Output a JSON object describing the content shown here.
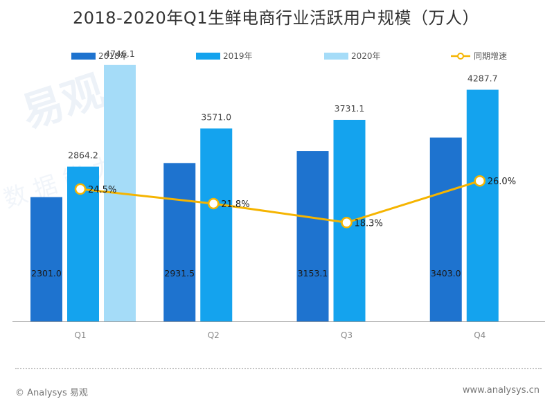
{
  "colors": {
    "s2018": "#1e73cf",
    "s2019": "#14a3ee",
    "s2020": "#a5dcf8",
    "line": "#f5b400",
    "axis": "#999999",
    "text": "#333333",
    "watermark": "#dfe8f3"
  },
  "watermark": {
    "brand": "易观",
    "tagline": "数 据 能 力"
  },
  "footer": {
    "copyright": "© Analysys 易观",
    "website": "www.analysys.cn"
  },
  "chart_data": {
    "type": "bar",
    "title": "2018-2020年Q1生鲜电商行业活跃用户规模（万人）",
    "categories": [
      "Q1",
      "Q2",
      "Q3",
      "Q4"
    ],
    "series": [
      {
        "name": "2018年",
        "values": [
          2301.0,
          2931.5,
          3153.1,
          3403.0
        ],
        "value_labels": [
          "2301.0",
          "2931.5",
          "3153.1",
          "3403.0"
        ],
        "color": "#1e73cf"
      },
      {
        "name": "2019年",
        "values": [
          2864.2,
          3571.0,
          3731.1,
          4287.7
        ],
        "value_labels": [
          "2864.2",
          "3571.0",
          "3731.1",
          "4287.7"
        ],
        "color": "#14a3ee"
      },
      {
        "name": "2020年",
        "values": [
          4746.1,
          null,
          null,
          null
        ],
        "value_labels": [
          "4746.1",
          "",
          "",
          ""
        ],
        "color": "#a5dcf8"
      }
    ],
    "line_series": {
      "name": "同期增速",
      "type": "line",
      "values": [
        24.5,
        21.8,
        18.3,
        26.0
      ],
      "value_labels": [
        "24.5%",
        "21.8%",
        "18.3%",
        "26.0%"
      ],
      "unit": "%",
      "axis": "secondary",
      "color": "#f5b400"
    },
    "ylim": [
      0,
      5000
    ],
    "y2lim": [
      0,
      50
    ],
    "legend_position": "top",
    "grid": false
  }
}
